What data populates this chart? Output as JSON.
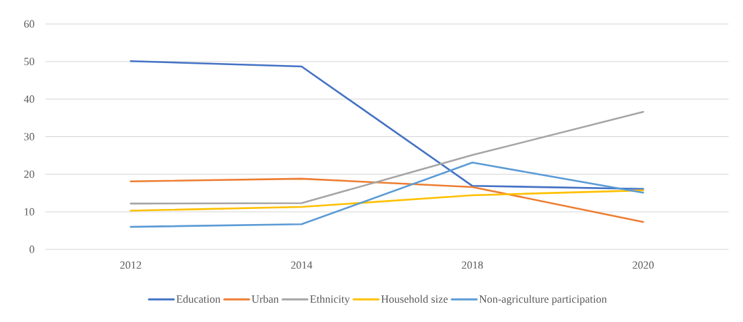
{
  "chart_data": {
    "type": "line",
    "categories": [
      "2012",
      "2014",
      "2018",
      "2020"
    ],
    "series": [
      {
        "name": "Education",
        "color": "#4472c4",
        "values": [
          50.1,
          48.7,
          16.9,
          16.1
        ]
      },
      {
        "name": "Urban",
        "color": "#ed7d31",
        "values": [
          18.1,
          18.8,
          16.6,
          7.3
        ]
      },
      {
        "name": "Ethnicity",
        "color": "#a5a5a5",
        "values": [
          12.2,
          12.3,
          25.1,
          36.6
        ]
      },
      {
        "name": "Household size",
        "color": "#ffc000",
        "values": [
          10.3,
          11.3,
          14.4,
          15.7
        ]
      },
      {
        "name": "Non-agriculture participation",
        "color": "#5b9bd5",
        "values": [
          6.0,
          6.7,
          23.1,
          15.1
        ]
      }
    ],
    "ylim": [
      0,
      60
    ],
    "yticks": [
      0,
      10,
      20,
      30,
      40,
      50,
      60
    ],
    "grid": "y",
    "legend": "bottom",
    "marker": "none",
    "line_style": "solid"
  }
}
